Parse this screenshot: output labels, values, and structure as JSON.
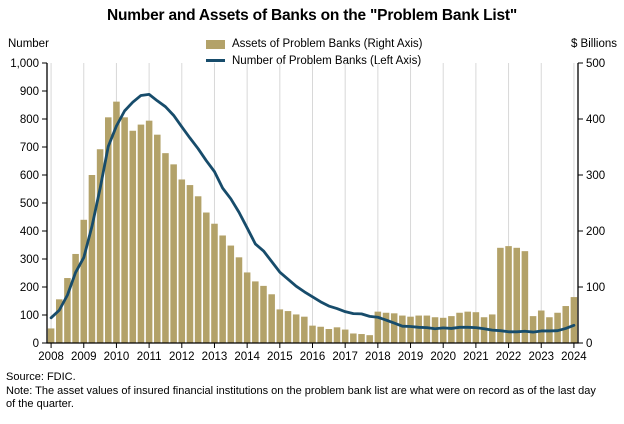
{
  "title": "Number and Assets of Banks on the \"Problem Bank List\"",
  "footer": {
    "source": "Source: FDIC.",
    "note": "Note: The asset values of insured financial institutions on the problem bank list are what were on record as of the last day of the quarter."
  },
  "chart_data": {
    "type": "bar+line",
    "title": "Number and Assets of Banks on the \"Problem Bank List\"",
    "x_frequency": "quarterly",
    "x_range": [
      "2008 Q1",
      "2024 Q1"
    ],
    "x_tick_labels": [
      "2008",
      "2009",
      "2010",
      "2011",
      "2012",
      "2013",
      "2014",
      "2015",
      "2016",
      "2017",
      "2018",
      "2019",
      "2020",
      "2021",
      "2022",
      "2023",
      "2024"
    ],
    "left_axis": {
      "title": "Number",
      "min": 0,
      "max": 1000,
      "tick_step": 100,
      "tick_labels": [
        "0",
        "100",
        "200",
        "300",
        "400",
        "500",
        "600",
        "700",
        "800",
        "900",
        "1,000"
      ]
    },
    "right_axis": {
      "title": "$ Billions",
      "min": 0,
      "max": 500,
      "tick_step": 100,
      "tick_labels": [
        "0",
        "100",
        "200",
        "300",
        "400",
        "500"
      ]
    },
    "grid": "vertical-yearly",
    "grid_color": "#d8d8d8",
    "legend_position": "top-center",
    "series": [
      {
        "name": "Assets of Problem Banks (Right Axis)",
        "type": "bar",
        "axis": "right",
        "unit": "$ billions",
        "color": "#b3a269",
        "values": [
          26,
          78,
          116,
          159,
          220,
          300,
          346,
          403,
          431,
          403,
          379,
          390,
          397,
          372,
          339,
          319,
          292,
          282,
          262,
          233,
          213,
          192,
          174,
          153,
          126,
          110,
          102,
          87,
          60,
          57,
          51,
          47,
          31,
          29,
          25,
          28,
          24,
          17,
          16,
          14,
          56,
          54,
          53,
          49,
          47,
          49,
          49,
          46,
          45,
          48,
          54,
          56,
          55,
          46,
          51,
          170,
          173,
          170,
          164,
          48,
          58,
          46,
          54,
          66,
          82
        ]
      },
      {
        "name": "Number of Problem Banks (Left Axis)",
        "type": "line",
        "axis": "left",
        "unit": "banks",
        "color": "#174c6b",
        "values": [
          90,
          117,
          171,
          252,
          305,
          416,
          552,
          702,
          775,
          829,
          860,
          884,
          888,
          865,
          844,
          813,
          772,
          732,
          694,
          651,
          612,
          553,
          515,
          467,
          411,
          354,
          329,
          291,
          253,
          228,
          203,
          183,
          165,
          147,
          132,
          123,
          112,
          105,
          104,
          95,
          92,
          82,
          71,
          60,
          59,
          56,
          55,
          51,
          54,
          52,
          56,
          56,
          55,
          51,
          46,
          44,
          40,
          40,
          42,
          39,
          43,
          43,
          44,
          52,
          63
        ]
      }
    ]
  }
}
